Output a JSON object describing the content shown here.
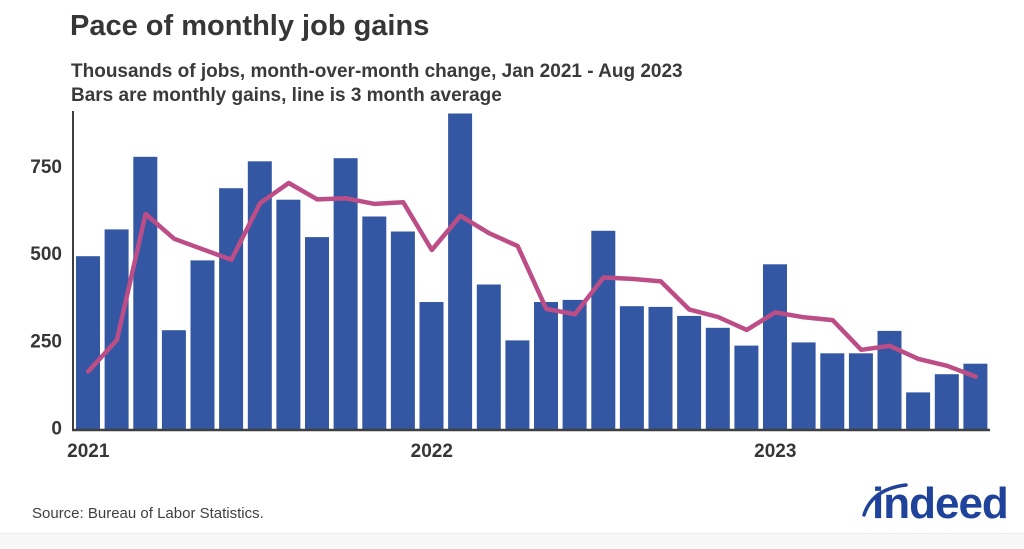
{
  "header": {
    "title": "Pace of monthly job gains",
    "subtitle_line1": "Thousands of jobs, month-over-month change, Jan 2021 - Aug 2023",
    "subtitle_line2": "Bars are monthly gains, line is 3 month average"
  },
  "footer": {
    "source": "Source: Bureau of Labor Statistics.",
    "logo_text": "indeed"
  },
  "colors": {
    "bar": "#3457a3",
    "line": "#bd4d87",
    "axis": "#3f3f3f",
    "text": "#363636",
    "logo_blue": "#1f439b"
  },
  "chart_data": {
    "type": "bar",
    "title": "Pace of monthly job gains",
    "subtitle": "Thousands of jobs, month-over-month change, Jan 2021 - Aug 2023. Bars are monthly gains, line is 3 month average",
    "xlabel": "",
    "ylabel": "Thousands of jobs",
    "ylim": [
      0,
      910
    ],
    "yticks": [
      0,
      250,
      500,
      750
    ],
    "grid": false,
    "legend_position": "none",
    "x": [
      "Jan 2021",
      "Feb 2021",
      "Mar 2021",
      "Apr 2021",
      "May 2021",
      "Jun 2021",
      "Jul 2021",
      "Aug 2021",
      "Sep 2021",
      "Oct 2021",
      "Nov 2021",
      "Dec 2021",
      "Jan 2022",
      "Feb 2022",
      "Mar 2022",
      "Apr 2022",
      "May 2022",
      "Jun 2022",
      "Jul 2022",
      "Aug 2022",
      "Sep 2022",
      "Oct 2022",
      "Nov 2022",
      "Dec 2022",
      "Jan 2023",
      "Feb 2023",
      "Mar 2023",
      "Apr 2023",
      "May 2023",
      "Jun 2023",
      "Jul 2023",
      "Aug 2023"
    ],
    "x_tick_labels": [
      {
        "label": "2021",
        "month_index": 0
      },
      {
        "label": "2022",
        "month_index": 12
      },
      {
        "label": "2023",
        "month_index": 24
      }
    ],
    "series": [
      {
        "name": "Monthly job gains",
        "render": "bar",
        "values": [
          495,
          572,
          780,
          283,
          483,
          690,
          767,
          657,
          550,
          776,
          609,
          566,
          364,
          904,
          414,
          254,
          364,
          370,
          568,
          352,
          350,
          324,
          290,
          239,
          472,
          248,
          217,
          217,
          281,
          105,
          157,
          187
        ]
      },
      {
        "name": "3 month average",
        "render": "line",
        "values": [
          165,
          255,
          616,
          545,
          515,
          485,
          647,
          705,
          658,
          661,
          645,
          650,
          513,
          611,
          561,
          524,
          344,
          329,
          434,
          430,
          423,
          342,
          321,
          284,
          334,
          320,
          312,
          227,
          238,
          201,
          181,
          150
        ]
      }
    ]
  }
}
